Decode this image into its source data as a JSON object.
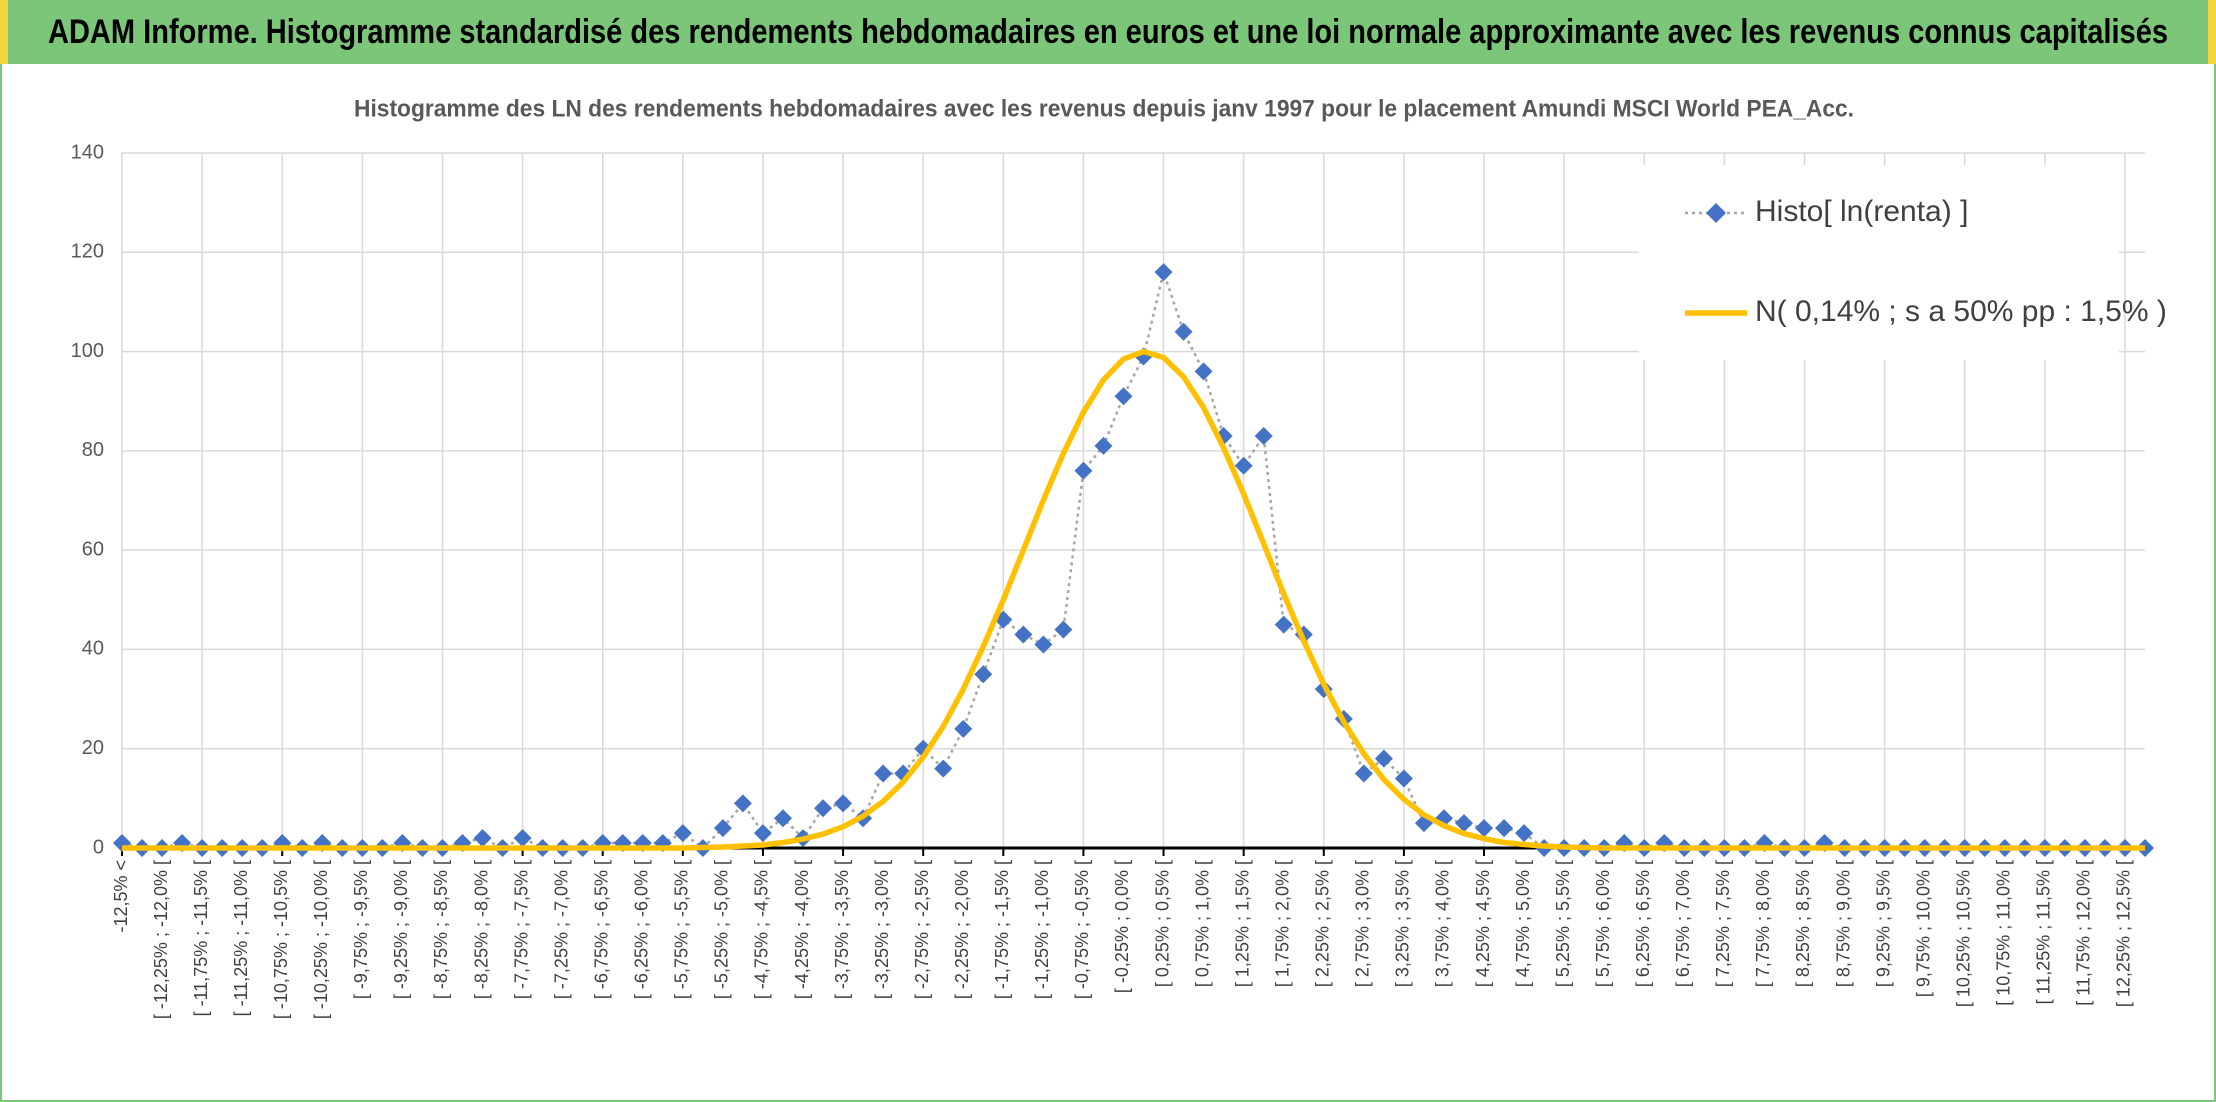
{
  "chart_data": {
    "type": "line",
    "header": "ADAM Informe. Histogramme standardisé des rendements hebdomadaires en euros et une loi normale approximante avec les revenus connus capitalisés",
    "title": "Histogramme des LN des rendements hebdomadaires avec les revenus depuis janv 1997 pour le placement Amundi MSCI World PEA_Acc.",
    "categories": [
      "-12,5% <",
      null,
      "[ -12,25% ; -12,0% [",
      null,
      "[ -11,75% ; -11,5% [",
      null,
      "[ -11,25% ; -11,0% [",
      null,
      "[ -10,75% ; -10,5% [",
      null,
      "[ -10,25% ; -10,0% [",
      null,
      "[ -9,75% ; -9,5% [",
      null,
      "[ -9,25% ; -9,0% [",
      null,
      "[ -8,75% ; -8,5% [",
      null,
      "[ -8,25% ; -8,0% [",
      null,
      "[ -7,75% ; -7,5% [",
      null,
      "[ -7,25% ; -7,0% [",
      null,
      "[ -6,75% ; -6,5% [",
      null,
      "[ -6,25% ; -6,0% [",
      null,
      "[ -5,75% ; -5,5% [",
      null,
      "[ -5,25% ; -5,0% [",
      null,
      "[ -4,75% ; -4,5% [",
      null,
      "[ -4,25% ; -4,0% [",
      null,
      "[ -3,75% ; -3,5% [",
      null,
      "[ -3,25% ; -3,0% [",
      null,
      "[ -2,75% ; -2,5% [",
      null,
      "[ -2,25% ; -2,0% [",
      null,
      "[ -1,75% ; -1,5% [",
      null,
      "[ -1,25% ; -1,0% [",
      null,
      "[ -0,75% ; -0,5% [",
      null,
      "[ -0,25% ; 0,0% [",
      null,
      "[ 0,25% ; 0,5% [",
      null,
      "[ 0,75% ; 1,0% [",
      null,
      "[ 1,25% ; 1,5% [",
      null,
      "[ 1,75% ; 2,0% [",
      null,
      "[ 2,25% ; 2,5% [",
      null,
      "[ 2,75% ; 3,0% [",
      null,
      "[ 3,25% ; 3,5% [",
      null,
      "[ 3,75% ; 4,0% [",
      null,
      "[ 4,25% ; 4,5% [",
      null,
      "[ 4,75% ; 5,0% [",
      null,
      "[ 5,25% ; 5,5% [",
      null,
      "[ 5,75% ; 6,0% [",
      null,
      "[ 6,25% ; 6,5% [",
      null,
      "[ 6,75% ; 7,0% [",
      null,
      "[ 7,25% ; 7,5% [",
      null,
      "[ 7,75% ; 8,0% [",
      null,
      "[ 8,25% ; 8,5% [",
      null,
      "[ 8,75% ; 9,0% [",
      null,
      "[ 9,25% ; 9,5% [",
      null,
      "[ 9,75% ; 10,0% [",
      null,
      "[ 10,25% ; 10,5% [",
      null,
      "[ 10,75% ; 11,0% [",
      null,
      "[ 11,25% ; 11,5% [",
      null,
      "[ 11,75% ; 12,0% [",
      null,
      "[ 12,25% ; 12,5% [",
      null
    ],
    "series": [
      {
        "name": "Histo[ ln(renta) ]",
        "color": "#4472c4",
        "line_color": "#a5a5a5",
        "line_style": "dotted",
        "marker": "diamond",
        "values": [
          1,
          0,
          0,
          1,
          0,
          0,
          0,
          0,
          1,
          0,
          1,
          0,
          0,
          0,
          1,
          0,
          0,
          1,
          2,
          0,
          2,
          0,
          0,
          0,
          1,
          1,
          1,
          1,
          3,
          0,
          4,
          9,
          3,
          6,
          2,
          8,
          9,
          6,
          15,
          15,
          20,
          16,
          24,
          35,
          46,
          43,
          41,
          44,
          76,
          81,
          91,
          99,
          116,
          104,
          96,
          83,
          77,
          83,
          45,
          43,
          32,
          26,
          15,
          18,
          14,
          5,
          6,
          5,
          4,
          4,
          3,
          0,
          0,
          0,
          0,
          1,
          0,
          1,
          0,
          0,
          0,
          0,
          1,
          0,
          0,
          1,
          0,
          0,
          0,
          0,
          0,
          0,
          0,
          0,
          0,
          0,
          0,
          0,
          0,
          0,
          0,
          0
        ]
      },
      {
        "name": "N( 0,14% ; s a 50% pp : 1,5% )",
        "color": "#ffc000",
        "line_style": "solid",
        "marker": "none",
        "values": [
          0,
          0,
          0,
          0,
          0,
          0,
          0,
          0,
          0,
          0,
          0,
          0,
          0,
          0,
          0,
          0,
          0,
          0,
          0,
          0,
          0,
          0,
          0,
          0,
          0,
          0,
          0,
          0,
          0,
          0.1,
          0.2,
          0.4,
          0.6,
          1.1,
          1.8,
          2.8,
          4.3,
          6.4,
          9.4,
          13.3,
          18.3,
          24.5,
          32.0,
          40.6,
          50.0,
          60.0,
          70.1,
          79.5,
          87.8,
          94.3,
          98.5,
          100.0,
          98.8,
          94.9,
          88.7,
          80.6,
          71.3,
          61.3,
          51.2,
          41.7,
          33.0,
          25.4,
          19.0,
          13.8,
          9.8,
          6.7,
          4.5,
          2.9,
          1.9,
          1.1,
          0.7,
          0.4,
          0.2,
          0.1,
          0,
          0,
          0,
          0,
          0,
          0,
          0,
          0,
          0,
          0,
          0,
          0,
          0,
          0,
          0,
          0,
          0,
          0,
          0,
          0,
          0,
          0,
          0,
          0,
          0,
          0,
          0,
          0
        ]
      }
    ],
    "ylim": [
      0,
      140
    ],
    "yticks": [
      0,
      20,
      40,
      60,
      80,
      100,
      120,
      140
    ],
    "grid": true,
    "legend": "top-right"
  }
}
